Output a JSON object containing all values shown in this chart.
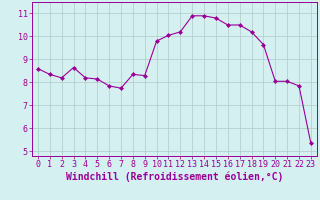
{
  "x": [
    0,
    1,
    2,
    3,
    4,
    5,
    6,
    7,
    8,
    9,
    10,
    11,
    12,
    13,
    14,
    15,
    16,
    17,
    18,
    19,
    20,
    21,
    22,
    23
  ],
  "y": [
    8.6,
    8.35,
    8.2,
    8.65,
    8.2,
    8.15,
    7.85,
    7.75,
    8.35,
    8.3,
    9.8,
    10.05,
    10.2,
    10.9,
    10.9,
    10.8,
    10.5,
    10.5,
    10.2,
    9.65,
    8.05,
    8.05,
    7.85,
    5.35
  ],
  "line_color": "#990099",
  "marker": "D",
  "marker_size": 2.0,
  "bg_color": "#d5f0f0",
  "grid_color": "#b0c8c8",
  "xlabel": "Windchill (Refroidissement éolien,°C)",
  "xlabel_color": "#990099",
  "ylim": [
    4.8,
    11.5
  ],
  "yticks": [
    5,
    6,
    7,
    8,
    9,
    10,
    11
  ],
  "xlim": [
    -0.5,
    23.5
  ],
  "xticks": [
    0,
    1,
    2,
    3,
    4,
    5,
    6,
    7,
    8,
    9,
    10,
    11,
    12,
    13,
    14,
    15,
    16,
    17,
    18,
    19,
    20,
    21,
    22,
    23
  ],
  "tick_color": "#990099",
  "spine_color": "#990099",
  "font_color": "#990099",
  "tick_fontsize": 6.0,
  "xlabel_fontsize": 7.0
}
